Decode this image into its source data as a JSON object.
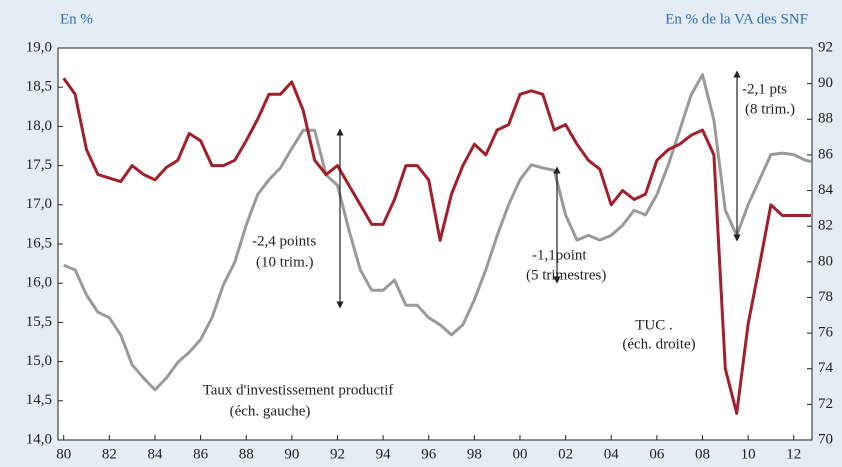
{
  "chart_data": {
    "type": "line",
    "y_label": "En %",
    "y2_label": "En % de la VA des SNF",
    "x": [
      1980,
      1980.5,
      1981,
      1981.5,
      1982,
      1982.5,
      1983,
      1983.5,
      1984,
      1984.5,
      1985,
      1985.5,
      1986,
      1986.5,
      1987,
      1987.5,
      1988,
      1988.5,
      1989,
      1989.5,
      1990,
      1990.5,
      1991,
      1991.5,
      1992,
      1992.5,
      1993,
      1993.5,
      1994,
      1994.5,
      1995,
      1995.5,
      1996,
      1996.5,
      1997,
      1997.5,
      1998,
      1998.5,
      1999,
      1999.5,
      2000,
      2000.5,
      2001,
      2001.5,
      2002,
      2002.5,
      2003,
      2003.5,
      2004,
      2004.5,
      2005,
      2005.5,
      2006,
      2006.5,
      2007,
      2007.5,
      2008,
      2008.5,
      2009,
      2009.5,
      2010,
      2010.5,
      2011,
      2011.5,
      2012,
      2012.5,
      2012.75
    ],
    "series": [
      {
        "name": "Taux d'investissement productif",
        "color": "#9a9a9a",
        "axis": "y",
        "values": [
          16.23,
          16.17,
          15.85,
          15.63,
          15.56,
          15.34,
          14.96,
          14.79,
          14.64,
          14.79,
          14.99,
          15.12,
          15.28,
          15.56,
          15.98,
          16.27,
          16.74,
          17.13,
          17.32,
          17.47,
          17.72,
          17.95,
          17.95,
          17.38,
          17.25,
          16.68,
          16.17,
          15.91,
          15.91,
          16.04,
          15.72,
          15.72,
          15.56,
          15.47,
          15.34,
          15.47,
          15.79,
          16.17,
          16.61,
          17.0,
          17.32,
          17.51,
          17.47,
          17.44,
          16.87,
          16.55,
          16.61,
          16.55,
          16.61,
          16.74,
          16.93,
          16.87,
          17.13,
          17.51,
          17.95,
          18.4,
          18.66,
          18.08,
          16.93,
          16.61,
          17.0,
          17.32,
          17.64,
          17.66,
          17.64,
          17.57,
          17.55
        ]
      },
      {
        "name": "TUC",
        "color": "#a31f2a",
        "axis": "y2",
        "values": [
          90.3,
          89.4,
          86.3,
          84.9,
          84.7,
          84.5,
          85.4,
          84.9,
          84.6,
          85.3,
          85.7,
          87.2,
          86.8,
          85.4,
          85.4,
          85.7,
          86.8,
          88,
          89.4,
          89.4,
          90.1,
          88.5,
          85.7,
          84.9,
          85.4,
          84.3,
          83.2,
          82.1,
          82.1,
          83.5,
          85.4,
          85.4,
          84.6,
          81.2,
          83.8,
          85.4,
          86.6,
          86,
          87.4,
          87.7,
          89.4,
          89.6,
          89.4,
          87.4,
          87.7,
          86.6,
          85.7,
          85.2,
          83.2,
          84,
          83.5,
          83.8,
          85.7,
          86.3,
          86.6,
          87.1,
          87.4,
          86,
          74,
          71.5,
          76.5,
          79.8,
          83.2,
          82.6,
          82.6,
          82.6,
          82.6
        ]
      }
    ],
    "xlim": [
      1979.75,
      2012.8
    ],
    "xticks": [
      {
        "value": 1980,
        "label": "80"
      },
      {
        "value": 1982,
        "label": "82"
      },
      {
        "value": 1984,
        "label": "84"
      },
      {
        "value": 1986,
        "label": "86"
      },
      {
        "value": 1988,
        "label": "88"
      },
      {
        "value": 1990,
        "label": "90"
      },
      {
        "value": 1992,
        "label": "92"
      },
      {
        "value": 1994,
        "label": "94"
      },
      {
        "value": 1996,
        "label": "96"
      },
      {
        "value": 1998,
        "label": "98"
      },
      {
        "value": 2000,
        "label": "00"
      },
      {
        "value": 2002,
        "label": "02"
      },
      {
        "value": 2004,
        "label": "04"
      },
      {
        "value": 2006,
        "label": "06"
      },
      {
        "value": 2008,
        "label": "08"
      },
      {
        "value": 2010,
        "label": "10"
      },
      {
        "value": 2012,
        "label": "12"
      }
    ],
    "ylim": [
      14,
      19
    ],
    "yticks": [
      {
        "value": 14,
        "label": "14,0"
      },
      {
        "value": 14.5,
        "label": "14,5"
      },
      {
        "value": 15,
        "label": "15,0"
      },
      {
        "value": 15.5,
        "label": "15,5"
      },
      {
        "value": 16,
        "label": "16,0"
      },
      {
        "value": 16.5,
        "label": "16,5"
      },
      {
        "value": 17,
        "label": "17,0"
      },
      {
        "value": 17.5,
        "label": "17,5"
      },
      {
        "value": 18,
        "label": "18,0"
      },
      {
        "value": 18.5,
        "label": "18,5"
      },
      {
        "value": 19,
        "label": "19,0"
      }
    ],
    "y2lim": [
      70,
      92
    ],
    "y2ticks": [
      70,
      72,
      74,
      76,
      78,
      80,
      82,
      84,
      86,
      88,
      90,
      92
    ],
    "grid": false,
    "annotations": [
      "-2,4 points",
      "(10 trim.)",
      "-1,1point",
      "(5 trimestres)",
      "-2,1 pts",
      "(8 trim.)",
      "TUC .",
      "(éch. droite)",
      "Taux d'investissement productif",
      "(éch. gauche)"
    ]
  }
}
